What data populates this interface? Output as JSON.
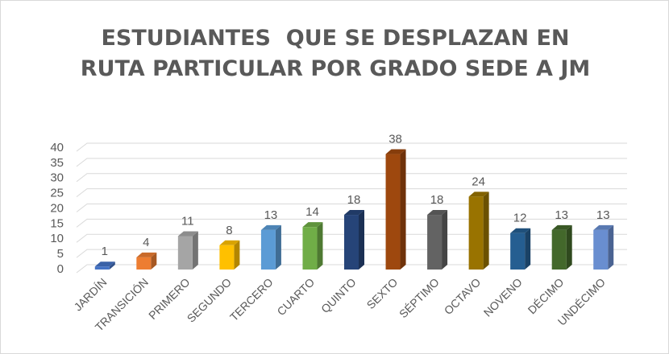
{
  "chart_data": {
    "type": "bar3d",
    "title": "ESTUDIANTES  QUE SE DESPLAZAN EN RUTA PARTICULAR POR GRADO SEDE A JM",
    "categories": [
      "JARDÍN",
      "TRANSICIÓN",
      "PRIMERO",
      "SEGUNDO",
      "TERCERO",
      "CUARTO",
      "QUINTO",
      "SEXTO",
      "SÉPTIMO",
      "OCTAVO",
      "NOVENO",
      "DÉCIMO",
      "UNDÉCIMO"
    ],
    "values": [
      1,
      4,
      11,
      8,
      13,
      14,
      18,
      38,
      18,
      24,
      12,
      13,
      13
    ],
    "colors": [
      "#4472c4",
      "#ed7d31",
      "#a5a5a5",
      "#ffc000",
      "#5b9bd5",
      "#70ad47",
      "#264478",
      "#9e480e",
      "#636363",
      "#997300",
      "#255e91",
      "#43682b",
      "#698ed0"
    ],
    "ylim": [
      0,
      40
    ],
    "yticks": [
      0,
      5,
      10,
      15,
      20,
      25,
      30,
      35,
      40
    ],
    "grid": true
  }
}
